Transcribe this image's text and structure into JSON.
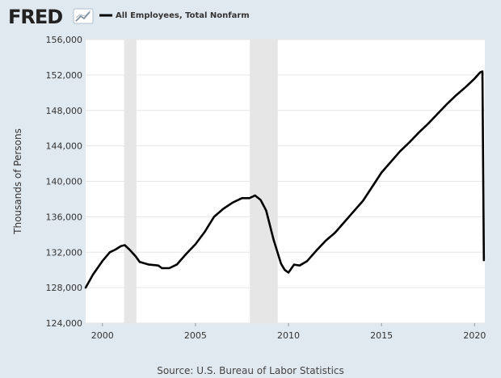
{
  "header": {
    "logo_text": "FRED",
    "legend_label": "All Employees, Total Nonfarm"
  },
  "source_text": "Source: U.S. Bureau of Labor Statistics",
  "colors": {
    "background": "#e1e9f0",
    "plot_background": "#ffffff",
    "series": "#000000",
    "recession": "#e6e6e6",
    "grid": "#e6e6e6"
  },
  "chart_data": {
    "type": "line",
    "title": "",
    "xlabel": "",
    "ylabel": "Thousands of Persons",
    "xlim": [
      1999.1,
      2020.55
    ],
    "ylim": [
      124000,
      156000
    ],
    "grid": true,
    "legend": "top-left",
    "x_ticks": [
      {
        "value": 2000,
        "label": "2000"
      },
      {
        "value": 2005,
        "label": "2005"
      },
      {
        "value": 2010,
        "label": "2010"
      },
      {
        "value": 2015,
        "label": "2015"
      },
      {
        "value": 2020,
        "label": "2020"
      }
    ],
    "y_ticks": [
      {
        "value": 124000,
        "label": "124,000"
      },
      {
        "value": 128000,
        "label": "128,000"
      },
      {
        "value": 132000,
        "label": "132,000"
      },
      {
        "value": 136000,
        "label": "136,000"
      },
      {
        "value": 140000,
        "label": "140,000"
      },
      {
        "value": 144000,
        "label": "144,000"
      },
      {
        "value": 148000,
        "label": "148,000"
      },
      {
        "value": 152000,
        "label": "152,000"
      },
      {
        "value": 156000,
        "label": "156,000"
      }
    ],
    "recessions": [
      {
        "start": 2001.17,
        "end": 2001.83
      },
      {
        "start": 2007.92,
        "end": 2009.42
      }
    ],
    "series": [
      {
        "name": "All Employees, Total Nonfarm",
        "x": [
          1999.1,
          1999.5,
          2000.0,
          2000.4,
          2000.7,
          2001.0,
          2001.2,
          2001.5,
          2001.8,
          2002.0,
          2002.5,
          2003.0,
          2003.2,
          2003.6,
          2004.0,
          2004.5,
          2005.0,
          2005.5,
          2006.0,
          2006.5,
          2007.0,
          2007.5,
          2007.9,
          2008.2,
          2008.5,
          2008.8,
          2009.2,
          2009.6,
          2009.8,
          2010.0,
          2010.3,
          2010.6,
          2011.0,
          2011.5,
          2012.0,
          2012.5,
          2013.0,
          2013.5,
          2014.0,
          2014.5,
          2015.0,
          2015.5,
          2016.0,
          2016.5,
          2017.0,
          2017.5,
          2018.0,
          2018.5,
          2019.0,
          2019.5,
          2020.0,
          2020.3,
          2020.42,
          2020.5
        ],
        "values": [
          128000,
          129500,
          131000,
          132000,
          132300,
          132700,
          132800,
          132200,
          131500,
          130900,
          130600,
          130500,
          130200,
          130200,
          130600,
          131800,
          132900,
          134300,
          136000,
          136900,
          137600,
          138100,
          138100,
          138400,
          137900,
          136700,
          133400,
          130700,
          130000,
          129700,
          130600,
          130500,
          131000,
          132200,
          133300,
          134200,
          135400,
          136600,
          137800,
          139400,
          141000,
          142200,
          143400,
          144400,
          145500,
          146500,
          147600,
          148700,
          149700,
          150600,
          151600,
          152300,
          152400,
          131100
        ]
      }
    ]
  }
}
